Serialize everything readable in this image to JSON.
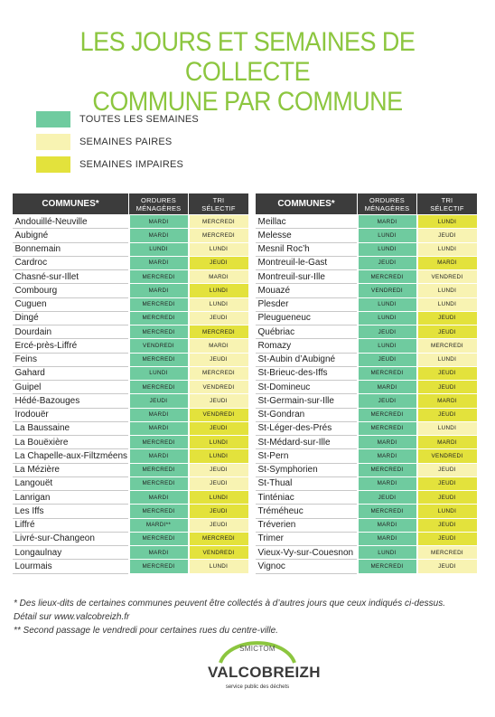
{
  "title": {
    "line1": "LES JOURS ET SEMAINES DE COLLECTE",
    "line2": "COMMUNE PAR COMMUNE"
  },
  "legend": [
    {
      "label": "TOUTES LES SEMAINES",
      "color": "#6fcb9f"
    },
    {
      "label": "SEMAINES PAIRES",
      "color": "#f8f3b2"
    },
    {
      "label": "SEMAINES IMPAIRES",
      "color": "#e3e23c"
    }
  ],
  "headers": {
    "communes": "COMMUNES*",
    "om1": "ORDURES",
    "om2": "MÉNAGÈRES",
    "tri1": "TRI",
    "tri2": "SÉLECTIF"
  },
  "left_rows": [
    {
      "commune": "Andouillé-Neuville",
      "om": "MARDI",
      "om_w": "all",
      "tri": "MERCREDI",
      "tri_w": "even"
    },
    {
      "commune": "Aubigné",
      "om": "MARDI",
      "om_w": "all",
      "tri": "MERCREDI",
      "tri_w": "even"
    },
    {
      "commune": "Bonnemain",
      "om": "LUNDI",
      "om_w": "all",
      "tri": "LUNDI",
      "tri_w": "even"
    },
    {
      "commune": "Cardroc",
      "om": "MARDI",
      "om_w": "all",
      "tri": "JEUDI",
      "tri_w": "odd"
    },
    {
      "commune": "Chasné-sur-Illet",
      "om": "MERCREDI",
      "om_w": "all",
      "tri": "MARDI",
      "tri_w": "even"
    },
    {
      "commune": "Combourg",
      "om": "MARDI",
      "om_w": "all",
      "tri": "LUNDI",
      "tri_w": "odd"
    },
    {
      "commune": "Cuguen",
      "om": "MERCREDI",
      "om_w": "all",
      "tri": "LUNDI",
      "tri_w": "even"
    },
    {
      "commune": "Dingé",
      "om": "MERCREDI",
      "om_w": "all",
      "tri": "JEUDI",
      "tri_w": "even"
    },
    {
      "commune": "Dourdain",
      "om": "MERCREDI",
      "om_w": "all",
      "tri": "MERCREDI",
      "tri_w": "odd"
    },
    {
      "commune": "Ercé-près-Liffré",
      "om": "VENDREDI",
      "om_w": "all",
      "tri": "MARDI",
      "tri_w": "even"
    },
    {
      "commune": "Feins",
      "om": "MERCREDI",
      "om_w": "all",
      "tri": "JEUDI",
      "tri_w": "even"
    },
    {
      "commune": "Gahard",
      "om": "LUNDI",
      "om_w": "all",
      "tri": "MERCREDI",
      "tri_w": "even"
    },
    {
      "commune": "Guipel",
      "om": "MERCREDI",
      "om_w": "all",
      "tri": "VENDREDI",
      "tri_w": "even"
    },
    {
      "commune": "Hédé-Bazouges",
      "om": "JEUDI",
      "om_w": "all",
      "tri": "JEUDI",
      "tri_w": "even"
    },
    {
      "commune": "Irodouër",
      "om": "MARDI",
      "om_w": "all",
      "tri": "VENDREDI",
      "tri_w": "odd"
    },
    {
      "commune": "La Baussaine",
      "om": "MARDI",
      "om_w": "all",
      "tri": "JEUDI",
      "tri_w": "odd"
    },
    {
      "commune": "La Bouëxière",
      "om": "MERCREDI",
      "om_w": "all",
      "tri": "LUNDI",
      "tri_w": "odd"
    },
    {
      "commune": "La Chapelle-aux-Filtzméens",
      "om": "MARDI",
      "om_w": "all",
      "tri": "LUNDI",
      "tri_w": "odd"
    },
    {
      "commune": "La Mézière",
      "om": "MERCREDI",
      "om_w": "all",
      "tri": "JEUDI",
      "tri_w": "even"
    },
    {
      "commune": "Langouët",
      "om": "MERCREDI",
      "om_w": "all",
      "tri": "JEUDI",
      "tri_w": "even"
    },
    {
      "commune": "Lanrigan",
      "om": "MARDI",
      "om_w": "all",
      "tri": "LUNDI",
      "tri_w": "odd"
    },
    {
      "commune": "Les Iffs",
      "om": "MERCREDI",
      "om_w": "all",
      "tri": "JEUDI",
      "tri_w": "odd"
    },
    {
      "commune": "Liffré",
      "om": "MARDI**",
      "om_w": "all",
      "tri": "JEUDI",
      "tri_w": "even"
    },
    {
      "commune": "Livré-sur-Changeon",
      "om": "MERCREDI",
      "om_w": "all",
      "tri": "MERCREDI",
      "tri_w": "odd"
    },
    {
      "commune": "Longaulnay",
      "om": "MARDI",
      "om_w": "all",
      "tri": "VENDREDI",
      "tri_w": "odd"
    },
    {
      "commune": "Lourmais",
      "om": "MERCREDI",
      "om_w": "all",
      "tri": "LUNDI",
      "tri_w": "even"
    }
  ],
  "right_rows": [
    {
      "commune": "Meillac",
      "om": "MARDI",
      "om_w": "all",
      "tri": "LUNDI",
      "tri_w": "odd"
    },
    {
      "commune": "Melesse",
      "om": "LUNDI",
      "om_w": "all",
      "tri": "JEUDI",
      "tri_w": "even"
    },
    {
      "commune": "Mesnil Roc’h",
      "om": "LUNDI",
      "om_w": "all",
      "tri": "LUNDI",
      "tri_w": "even"
    },
    {
      "commune": "Montreuil-le-Gast",
      "om": "JEUDI",
      "om_w": "all",
      "tri": "MARDI",
      "tri_w": "odd"
    },
    {
      "commune": "Montreuil-sur-Ille",
      "om": "MERCREDI",
      "om_w": "all",
      "tri": "VENDREDI",
      "tri_w": "even"
    },
    {
      "commune": "Mouazé",
      "om": "VENDREDI",
      "om_w": "all",
      "tri": "LUNDI",
      "tri_w": "even"
    },
    {
      "commune": "Plesder",
      "om": "LUNDI",
      "om_w": "all",
      "tri": "LUNDI",
      "tri_w": "even"
    },
    {
      "commune": "Pleugueneuc",
      "om": "LUNDI",
      "om_w": "all",
      "tri": "JEUDI",
      "tri_w": "odd"
    },
    {
      "commune": "Québriac",
      "om": "JEUDI",
      "om_w": "all",
      "tri": "JEUDI",
      "tri_w": "odd"
    },
    {
      "commune": "Romazy",
      "om": "LUNDI",
      "om_w": "all",
      "tri": "MERCREDI",
      "tri_w": "even"
    },
    {
      "commune": "St-Aubin d’Aubigné",
      "om": "JEUDI",
      "om_w": "all",
      "tri": "LUNDI",
      "tri_w": "even"
    },
    {
      "commune": "St-Brieuc-des-Iffs",
      "om": "MERCREDI",
      "om_w": "all",
      "tri": "JEUDI",
      "tri_w": "odd"
    },
    {
      "commune": "St-Domineuc",
      "om": "MARDI",
      "om_w": "all",
      "tri": "JEUDI",
      "tri_w": "odd"
    },
    {
      "commune": "St-Germain-sur-Ille",
      "om": "JEUDI",
      "om_w": "all",
      "tri": "MARDI",
      "tri_w": "odd"
    },
    {
      "commune": "St-Gondran",
      "om": "MERCREDI",
      "om_w": "all",
      "tri": "JEUDI",
      "tri_w": "odd"
    },
    {
      "commune": "St-Léger-des-Prés",
      "om": "MERCREDI",
      "om_w": "all",
      "tri": "LUNDI",
      "tri_w": "even"
    },
    {
      "commune": "St-Médard-sur-Ille",
      "om": "MARDI",
      "om_w": "all",
      "tri": "MARDI",
      "tri_w": "odd"
    },
    {
      "commune": "St-Pern",
      "om": "MARDI",
      "om_w": "all",
      "tri": "VENDREDI",
      "tri_w": "odd"
    },
    {
      "commune": "St-Symphorien",
      "om": "MERCREDI",
      "om_w": "all",
      "tri": "JEUDI",
      "tri_w": "even"
    },
    {
      "commune": "St-Thual",
      "om": "MARDI",
      "om_w": "all",
      "tri": "JEUDI",
      "tri_w": "odd"
    },
    {
      "commune": "Tinténiac",
      "om": "JEUDI",
      "om_w": "all",
      "tri": "JEUDI",
      "tri_w": "odd"
    },
    {
      "commune": "Tréméheuc",
      "om": "MERCREDI",
      "om_w": "all",
      "tri": "LUNDI",
      "tri_w": "odd"
    },
    {
      "commune": "Tréverien",
      "om": "MARDI",
      "om_w": "all",
      "tri": "JEUDI",
      "tri_w": "odd"
    },
    {
      "commune": "Trimer",
      "om": "MARDI",
      "om_w": "all",
      "tri": "JEUDI",
      "tri_w": "odd"
    },
    {
      "commune": "Vieux-Vy-sur-Couesnon",
      "om": "LUNDI",
      "om_w": "all",
      "tri": "MERCREDI",
      "tri_w": "even"
    },
    {
      "commune": "Vignoc",
      "om": "MERCREDI",
      "om_w": "all",
      "tri": "JEUDI",
      "tri_w": "even"
    }
  ],
  "notes": {
    "line1": "* Des lieux-dits de certaines communes peuvent être collectés à d’autres jours que ceux indiqués ci-dessus.",
    "line2": "Détail sur www.valcobreizh.fr",
    "line3": "** Second passage le vendredi pour certaines rues du centre-ville."
  },
  "logo": {
    "small": "SMICTOM",
    "main": "VALCOBREIZH",
    "tagline": "service public des déchets"
  }
}
